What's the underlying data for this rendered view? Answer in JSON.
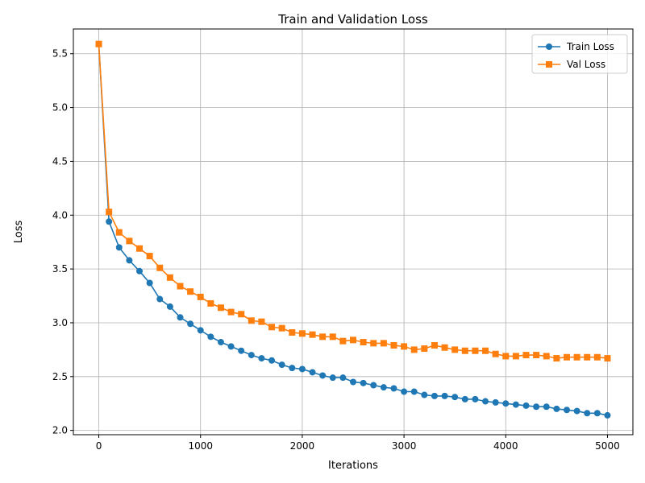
{
  "chart_data": {
    "type": "line",
    "title": "Train and Validation Loss",
    "xlabel": "Iterations",
    "ylabel": "Loss",
    "xlim": [
      -250,
      5250
    ],
    "ylim": [
      1.96,
      5.73
    ],
    "xticks": [
      0,
      1000,
      2000,
      3000,
      4000,
      5000
    ],
    "yticks": [
      2.0,
      2.5,
      3.0,
      3.5,
      4.0,
      4.5,
      5.0,
      5.5
    ],
    "xtick_labels": [
      "0",
      "1000",
      "2000",
      "3000",
      "4000",
      "5000"
    ],
    "ytick_labels": [
      "2.0",
      "2.5",
      "3.0",
      "3.5",
      "4.0",
      "4.5",
      "5.0",
      "5.5"
    ],
    "grid": true,
    "legend": "top-right",
    "x": [
      0,
      100,
      200,
      300,
      400,
      500,
      600,
      700,
      800,
      900,
      1000,
      1100,
      1200,
      1300,
      1400,
      1500,
      1600,
      1700,
      1800,
      1900,
      2000,
      2100,
      2200,
      2300,
      2400,
      2500,
      2600,
      2700,
      2800,
      2900,
      3000,
      3100,
      3200,
      3300,
      3400,
      3500,
      3600,
      3700,
      3800,
      3900,
      4000,
      4100,
      4200,
      4300,
      4400,
      4500,
      4600,
      4700,
      4800,
      4900,
      5000
    ],
    "series": [
      {
        "name": "Train Loss",
        "color": "#1f77b4",
        "marker": "circle",
        "values": [
          5.59,
          3.94,
          3.7,
          3.58,
          3.48,
          3.37,
          3.22,
          3.15,
          3.05,
          2.99,
          2.93,
          2.87,
          2.82,
          2.78,
          2.74,
          2.7,
          2.67,
          2.65,
          2.61,
          2.58,
          2.57,
          2.54,
          2.51,
          2.49,
          2.49,
          2.45,
          2.44,
          2.42,
          2.4,
          2.39,
          2.36,
          2.36,
          2.33,
          2.32,
          2.32,
          2.31,
          2.29,
          2.29,
          2.27,
          2.26,
          2.25,
          2.24,
          2.23,
          2.22,
          2.22,
          2.2,
          2.19,
          2.18,
          2.16,
          2.16,
          2.14
        ]
      },
      {
        "name": "Val Loss",
        "color": "#ff7f0e",
        "marker": "square",
        "values": [
          5.59,
          4.03,
          3.84,
          3.76,
          3.69,
          3.62,
          3.51,
          3.42,
          3.34,
          3.29,
          3.24,
          3.18,
          3.14,
          3.1,
          3.08,
          3.02,
          3.01,
          2.96,
          2.95,
          2.91,
          2.9,
          2.89,
          2.87,
          2.87,
          2.83,
          2.84,
          2.82,
          2.81,
          2.81,
          2.79,
          2.78,
          2.75,
          2.76,
          2.79,
          2.77,
          2.75,
          2.74,
          2.74,
          2.74,
          2.71,
          2.69,
          2.69,
          2.7,
          2.7,
          2.69,
          2.67,
          2.68,
          2.68,
          2.68,
          2.68,
          2.67
        ]
      }
    ]
  }
}
